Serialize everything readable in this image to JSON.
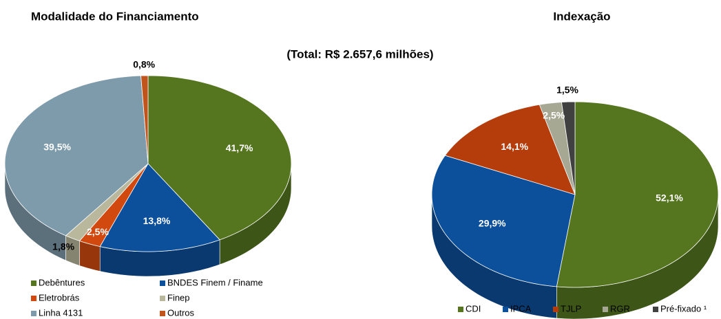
{
  "subtitle": "(Total: R$ 2.657,6 milhões)",
  "chart_data": [
    {
      "type": "pie",
      "title": "Modalidade do Financiamento",
      "categories": [
        "Debêntures",
        "BNDES Finem / Finame",
        "Eletrobrás",
        "Finep",
        "Linha 4131",
        "Outros"
      ],
      "values": [
        41.7,
        13.8,
        2.5,
        1.8,
        39.5,
        0.8
      ],
      "value_labels": [
        "41,7%",
        "13,8%",
        "2,5%",
        "1,8%",
        "39,5%",
        "0,8%"
      ],
      "colors": [
        "#55761f",
        "#0c4f9a",
        "#d2490f",
        "#b9b79c",
        "#7e9bab",
        "#c0541c"
      ]
    },
    {
      "type": "pie",
      "title": "Indexação",
      "categories": [
        "CDI",
        "IPCA",
        "TJLP",
        "RGR",
        "Pré-fixado ¹"
      ],
      "values": [
        52.1,
        29.9,
        14.1,
        2.5,
        1.5
      ],
      "value_labels": [
        "52,1%",
        "29,9%",
        "14,1%",
        "2,5%",
        "1,5%"
      ],
      "colors": [
        "#55761f",
        "#0c4f9a",
        "#b53c0b",
        "#a7a893",
        "#404040"
      ]
    }
  ]
}
